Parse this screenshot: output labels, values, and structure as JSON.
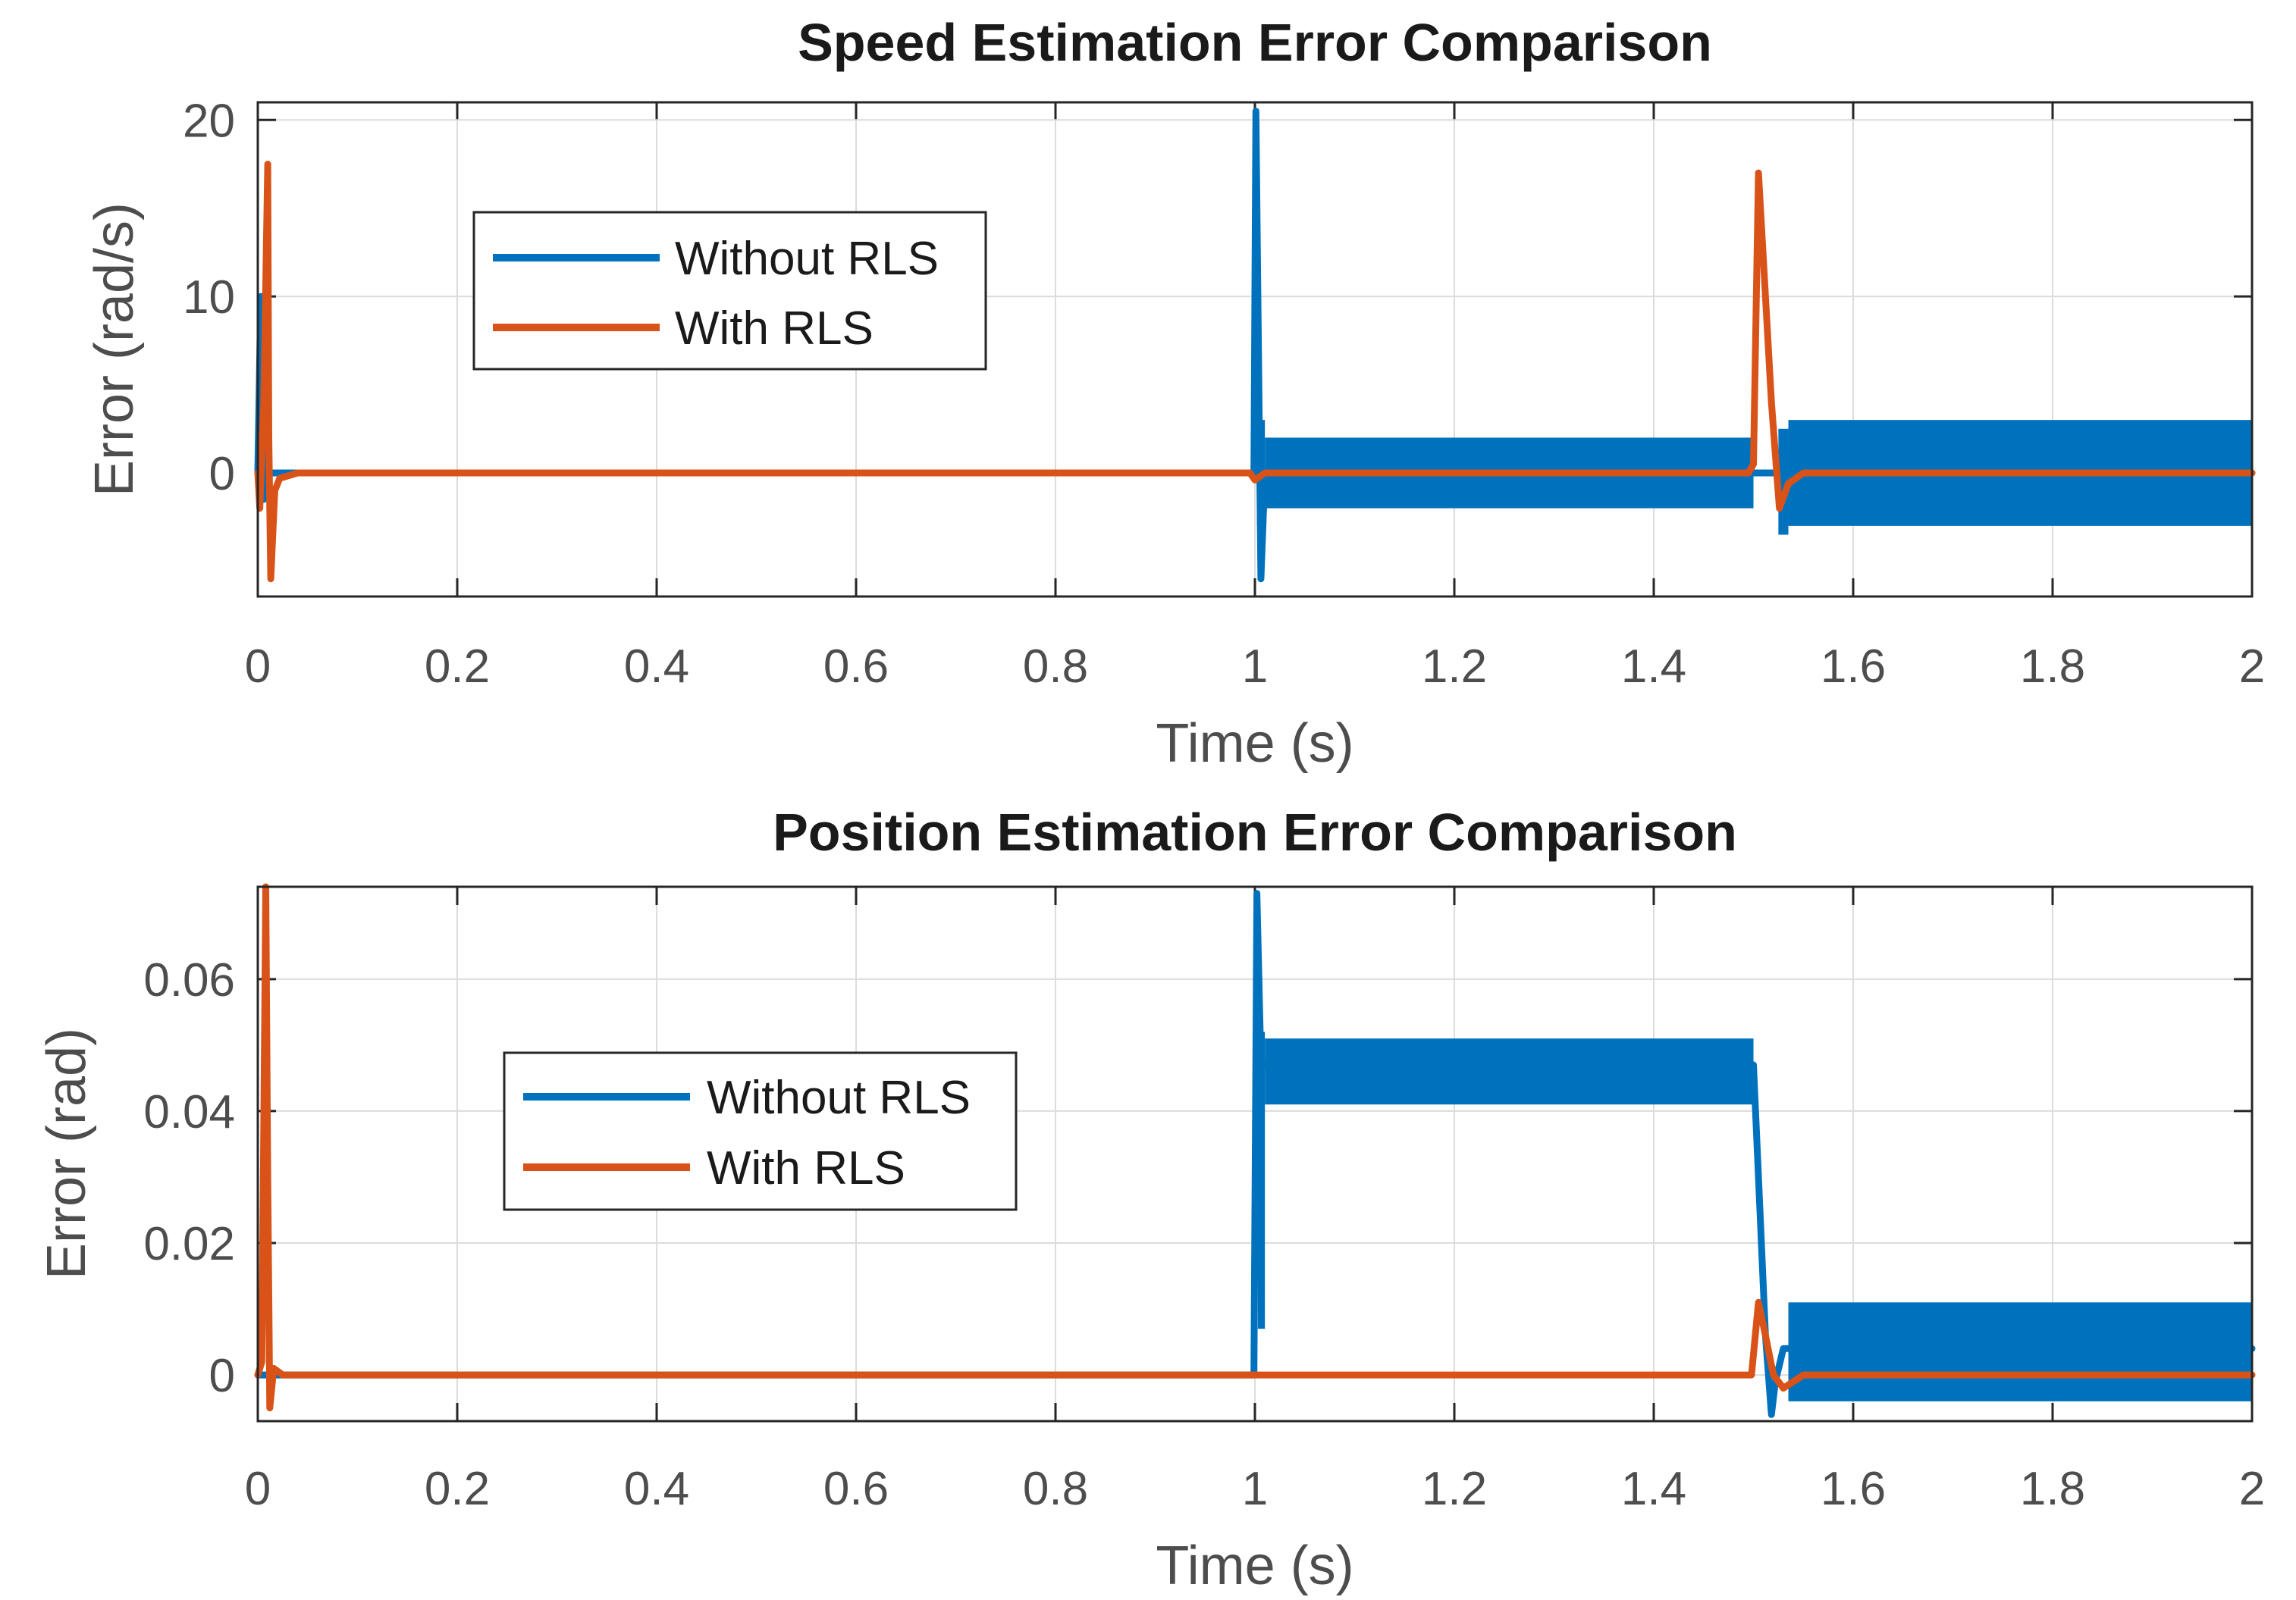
{
  "chart_data": [
    {
      "type": "line",
      "title": "Speed Estimation Error Comparison",
      "xlabel": "Time (s)",
      "ylabel": "Error (rad/s)",
      "xlim": [
        0,
        2
      ],
      "ylim": [
        -7,
        21
      ],
      "grid": true,
      "legend_position": "upper-left",
      "xticks": [
        0,
        0.2,
        0.4,
        0.6,
        0.8,
        1,
        1.2,
        1.4,
        1.6,
        1.8,
        2
      ],
      "xtick_labels": [
        "0",
        "0.2",
        "0.4",
        "0.6",
        "0.8",
        "1",
        "1.2",
        "1.4",
        "1.6",
        "1.8",
        "2"
      ],
      "yticks": [
        0,
        10,
        20
      ],
      "ytick_labels": [
        "0",
        "10",
        "20"
      ],
      "series": [
        {
          "name": "Without RLS",
          "color": "#0072BD",
          "points": [
            [
              0,
              0
            ],
            [
              0.003,
              10
            ],
            [
              0.006,
              -1.5
            ],
            [
              0.01,
              0
            ],
            [
              0.999,
              0
            ],
            [
              1.001,
              20.5
            ],
            [
              1.006,
              -6
            ],
            [
              1.01,
              0
            ],
            [
              2,
              0
            ]
          ],
          "bands": [
            {
              "x": [
                1.002,
                1.01
              ],
              "lo": -3,
              "hi": 3
            },
            {
              "x": [
                1.01,
                1.5
              ],
              "lo": -2.0,
              "hi": 2.0
            },
            {
              "x": [
                1.525,
                1.535
              ],
              "lo": -3.5,
              "hi": 2.5
            },
            {
              "x": [
                1.535,
                2
              ],
              "lo": -3.0,
              "hi": 3.0
            }
          ]
        },
        {
          "name": "With RLS",
          "color": "#D95319",
          "points": [
            [
              0,
              0
            ],
            [
              0.002,
              -2
            ],
            [
              0.006,
              4
            ],
            [
              0.01,
              17.5
            ],
            [
              0.011,
              2
            ],
            [
              0.013,
              -6
            ],
            [
              0.017,
              -1
            ],
            [
              0.022,
              -0.3
            ],
            [
              0.04,
              0
            ],
            [
              0.995,
              0
            ],
            [
              1.0,
              -0.4
            ],
            [
              1.01,
              0
            ],
            [
              1.495,
              0
            ],
            [
              1.5,
              0.5
            ],
            [
              1.505,
              17
            ],
            [
              1.51,
              12
            ],
            [
              1.518,
              4
            ],
            [
              1.526,
              -2
            ],
            [
              1.535,
              -0.6
            ],
            [
              1.55,
              0
            ],
            [
              2,
              0
            ]
          ]
        }
      ]
    },
    {
      "type": "line",
      "title": "Position Estimation Error Comparison",
      "xlabel": "Time (s)",
      "ylabel": "Error (rad)",
      "xlim": [
        0,
        2
      ],
      "ylim": [
        -0.007,
        0.074
      ],
      "grid": true,
      "legend_position": "center-left",
      "xticks": [
        0,
        0.2,
        0.4,
        0.6,
        0.8,
        1,
        1.2,
        1.4,
        1.6,
        1.8,
        2
      ],
      "xtick_labels": [
        "0",
        "0.2",
        "0.4",
        "0.6",
        "0.8",
        "1",
        "1.2",
        "1.4",
        "1.6",
        "1.8",
        "2"
      ],
      "yticks": [
        0,
        0.02,
        0.04,
        0.06
      ],
      "ytick_labels": [
        "0",
        "0.02",
        "0.04",
        "0.06"
      ],
      "series": [
        {
          "name": "Without RLS",
          "color": "#0072BD",
          "points": [
            [
              0,
              0
            ],
            [
              0.999,
              0
            ],
            [
              1.002,
              0.073
            ],
            [
              1.006,
              0.047
            ],
            [
              1.5,
              0.047
            ],
            [
              1.505,
              0.03
            ],
            [
              1.512,
              0.006
            ],
            [
              1.518,
              -0.006
            ],
            [
              1.522,
              -0.001
            ],
            [
              1.53,
              0.004
            ],
            [
              1.535,
              0.004
            ],
            [
              2,
              0.004
            ]
          ],
          "bands": [
            {
              "x": [
                1.003,
                1.01
              ],
              "lo": 0.007,
              "hi": 0.052
            },
            {
              "x": [
                1.01,
                1.5
              ],
              "lo": 0.041,
              "hi": 0.051
            },
            {
              "x": [
                1.535,
                2
              ],
              "lo": -0.004,
              "hi": 0.011
            }
          ]
        },
        {
          "name": "With RLS",
          "color": "#D95319",
          "points": [
            [
              0,
              0
            ],
            [
              0.004,
              0.002
            ],
            [
              0.008,
              0.074
            ],
            [
              0.01,
              0.03
            ],
            [
              0.012,
              -0.005
            ],
            [
              0.016,
              0.001
            ],
            [
              0.025,
              0
            ],
            [
              1.498,
              0
            ],
            [
              1.505,
              0.011
            ],
            [
              1.512,
              0.006
            ],
            [
              1.52,
              0
            ],
            [
              1.53,
              -0.002
            ],
            [
              1.55,
              0
            ],
            [
              2,
              0
            ]
          ]
        }
      ]
    }
  ]
}
